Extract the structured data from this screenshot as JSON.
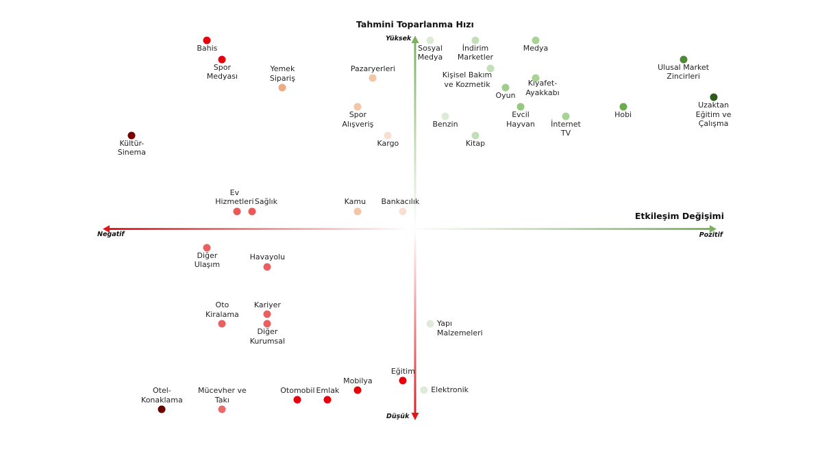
{
  "chart_data": {
    "type": "scatter",
    "title": "",
    "xlabel": "Etkileşim Değişimi",
    "ylabel": "Tahmini Toparlanma Hızı",
    "x_neg_label": "Negatif",
    "x_pos_label": "Pozitif",
    "y_pos_label": "Yüksek",
    "y_neg_label": "Düşük",
    "xlim": [
      -100,
      100
    ],
    "ylim": [
      -100,
      100
    ],
    "grid": false,
    "colors": {
      "negative_axis": "#e0161b",
      "positive_axis": "#7ab05e"
    },
    "points": [
      {
        "label": "Bahis",
        "x": -69,
        "y": 99,
        "color": "#e8000b",
        "label_pos": "below"
      },
      {
        "label": "Spor\nMedyası",
        "x": -64,
        "y": 89,
        "color": "#e8000b",
        "label_pos": "below"
      },
      {
        "label": "Yemek\nSipariş",
        "x": -44,
        "y": 74,
        "color": "#eeaa80",
        "label_pos": "above"
      },
      {
        "label": "Pazaryerleri",
        "x": -14,
        "y": 79,
        "color": "#f3c6a6",
        "label_pos": "above"
      },
      {
        "label": "Spor\nAlışveriş",
        "x": -19,
        "y": 64,
        "color": "#f3c6a6",
        "label_pos": "below"
      },
      {
        "label": "Kargo",
        "x": -9,
        "y": 49,
        "color": "#f7e0d2",
        "label_pos": "below"
      },
      {
        "label": "Kültür-\nSinema",
        "x": -94,
        "y": 49,
        "color": "#7a0000",
        "label_pos": "below"
      },
      {
        "label": "Ev\nHizmetleri",
        "x": -59,
        "y": 9,
        "color": "#ea5858",
        "label_pos": "above-left"
      },
      {
        "label": "Sağlık",
        "x": -54,
        "y": 9,
        "color": "#ea5858",
        "label_pos": "above-right"
      },
      {
        "label": "Kamu",
        "x": -19,
        "y": 9,
        "color": "#f3c6a6",
        "label_pos": "above-left"
      },
      {
        "label": "Bankacılık",
        "x": -4,
        "y": 9,
        "color": "#f7e0d2",
        "label_pos": "above-left"
      },
      {
        "label": "Diğer\nUlaşım",
        "x": -69,
        "y": -10,
        "color": "#ea6060",
        "label_pos": "below"
      },
      {
        "label": "Havayolu",
        "x": -49,
        "y": -20,
        "color": "#ea6060",
        "label_pos": "above"
      },
      {
        "label": "Oto\nKiralama",
        "x": -64,
        "y": -50,
        "color": "#ea6060",
        "label_pos": "above"
      },
      {
        "label": "Kariyer",
        "x": -49,
        "y": -45,
        "color": "#ea6060",
        "label_pos": "above"
      },
      {
        "label": "Diğer\nKurumsal",
        "x": -49,
        "y": -50,
        "color": "#ea6060",
        "label_pos": "below"
      },
      {
        "label": "Otel-\nKonaklama",
        "x": -84,
        "y": -95,
        "color": "#6b0000",
        "label_pos": "above"
      },
      {
        "label": "Mücevher ve\nTakı",
        "x": -64,
        "y": -95,
        "color": "#ea6a6a",
        "label_pos": "above"
      },
      {
        "label": "Otomobil",
        "x": -39,
        "y": -90,
        "color": "#e8000b",
        "label_pos": "above"
      },
      {
        "label": "Emlak",
        "x": -29,
        "y": -90,
        "color": "#e8000b",
        "label_pos": "above"
      },
      {
        "label": "Mobilya",
        "x": -19,
        "y": -85,
        "color": "#e8000b",
        "label_pos": "above"
      },
      {
        "label": "Eğitim",
        "x": -4,
        "y": -80,
        "color": "#e8000b",
        "label_pos": "above"
      },
      {
        "label": "Yapı\nMalzemeleri",
        "x": 5,
        "y": -50,
        "color": "#dfeadb",
        "label_pos": "right"
      },
      {
        "label": "Elektronik",
        "x": 3,
        "y": -85,
        "color": "#dfeadb",
        "label_pos": "right"
      },
      {
        "label": "Sosyal\nMedya",
        "x": 5,
        "y": 99,
        "color": "#dcebd6",
        "label_pos": "below"
      },
      {
        "label": "İndirim\nMarketler",
        "x": 20,
        "y": 99,
        "color": "#c3dfb8",
        "label_pos": "below"
      },
      {
        "label": "Medya",
        "x": 40,
        "y": 99,
        "color": "#a8d394",
        "label_pos": "below"
      },
      {
        "label": "Kişisel Bakım\nve Kozmetik",
        "x": 25,
        "y": 84,
        "color": "#c3dfb8",
        "label_pos": "below-left"
      },
      {
        "label": "Kıyafet-\nAyakkabı",
        "x": 40,
        "y": 79,
        "color": "#a8d394",
        "label_pos": "below-right"
      },
      {
        "label": "Oyun",
        "x": 30,
        "y": 74,
        "color": "#a1cd8c",
        "label_pos": "below"
      },
      {
        "label": "Evcil\nHayvan",
        "x": 35,
        "y": 64,
        "color": "#96c77f",
        "label_pos": "below"
      },
      {
        "label": "Benzin",
        "x": 10,
        "y": 59,
        "color": "#dcebd6",
        "label_pos": "below"
      },
      {
        "label": "İnternet\nTV",
        "x": 50,
        "y": 59,
        "color": "#a8d394",
        "label_pos": "below"
      },
      {
        "label": "Kitap",
        "x": 20,
        "y": 49,
        "color": "#c3dfb8",
        "label_pos": "below"
      },
      {
        "label": "Hobi",
        "x": 69,
        "y": 64,
        "color": "#6aab4c",
        "label_pos": "below"
      },
      {
        "label": "Ulusal Market\nZincirleri",
        "x": 89,
        "y": 89,
        "color": "#4e8a35",
        "label_pos": "below"
      },
      {
        "label": "Uzaktan\nEğitim ve\nÇalışma",
        "x": 99,
        "y": 69,
        "color": "#2f5a1e",
        "label_pos": "below"
      }
    ]
  }
}
